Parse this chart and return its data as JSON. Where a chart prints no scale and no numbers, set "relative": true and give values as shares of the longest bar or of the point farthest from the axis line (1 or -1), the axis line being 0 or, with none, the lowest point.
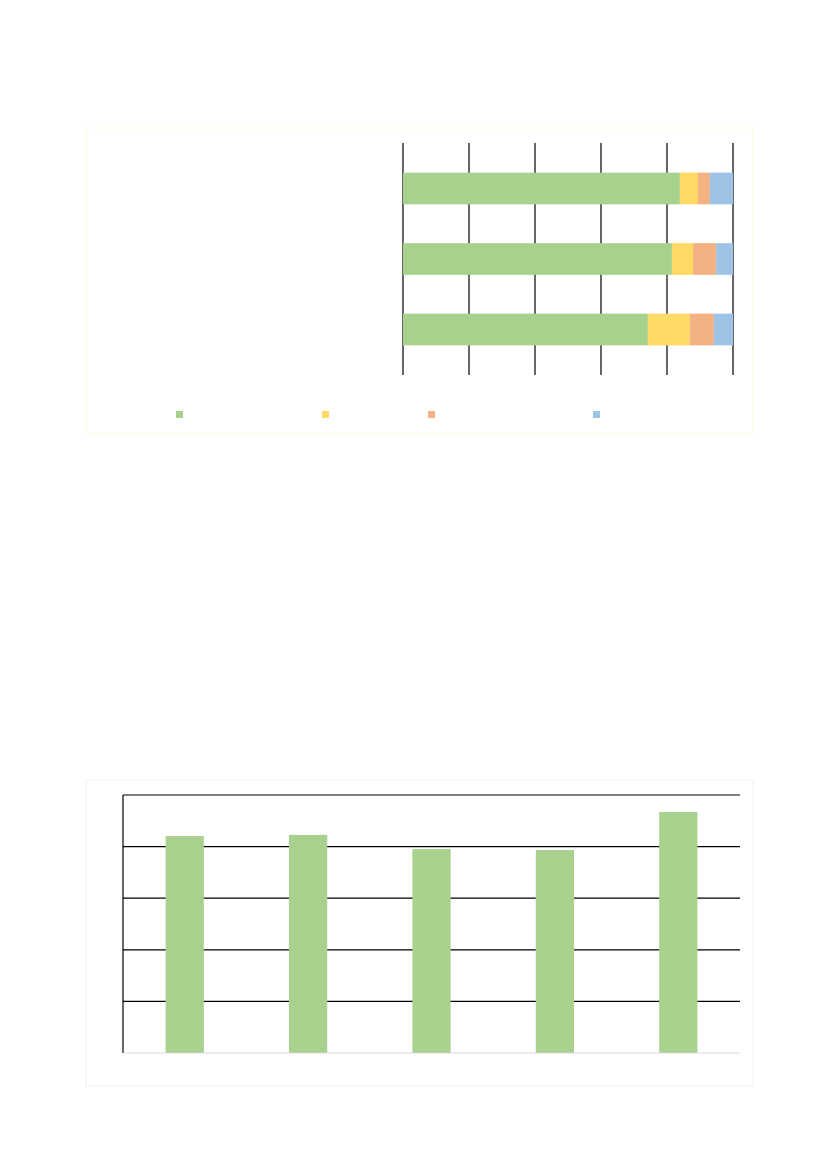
{
  "chart_data": [
    {
      "type": "bar",
      "orientation": "horizontal",
      "stacked": true,
      "relative": true,
      "categories": [
        null,
        null,
        null
      ],
      "grid": "x",
      "series": [
        {
          "color": "#a9d18e",
          "values": [
            0.839,
            0.815,
            0.742
          ]
        },
        {
          "color": "#ffd966",
          "values": [
            0.055,
            0.064,
            0.127
          ]
        },
        {
          "color": "#f4b183",
          "values": [
            0.036,
            0.07,
            0.073
          ]
        },
        {
          "color": "#9dc3e6",
          "values": [
            0.07,
            0.051,
            0.058
          ]
        }
      ]
    },
    {
      "type": "bar",
      "relative": true,
      "categories": [
        null,
        null,
        null,
        null,
        null
      ],
      "grid": "y",
      "color": "#a9d18e",
      "values": [
        0.9,
        0.905,
        0.846,
        0.842,
        1.0
      ]
    }
  ]
}
